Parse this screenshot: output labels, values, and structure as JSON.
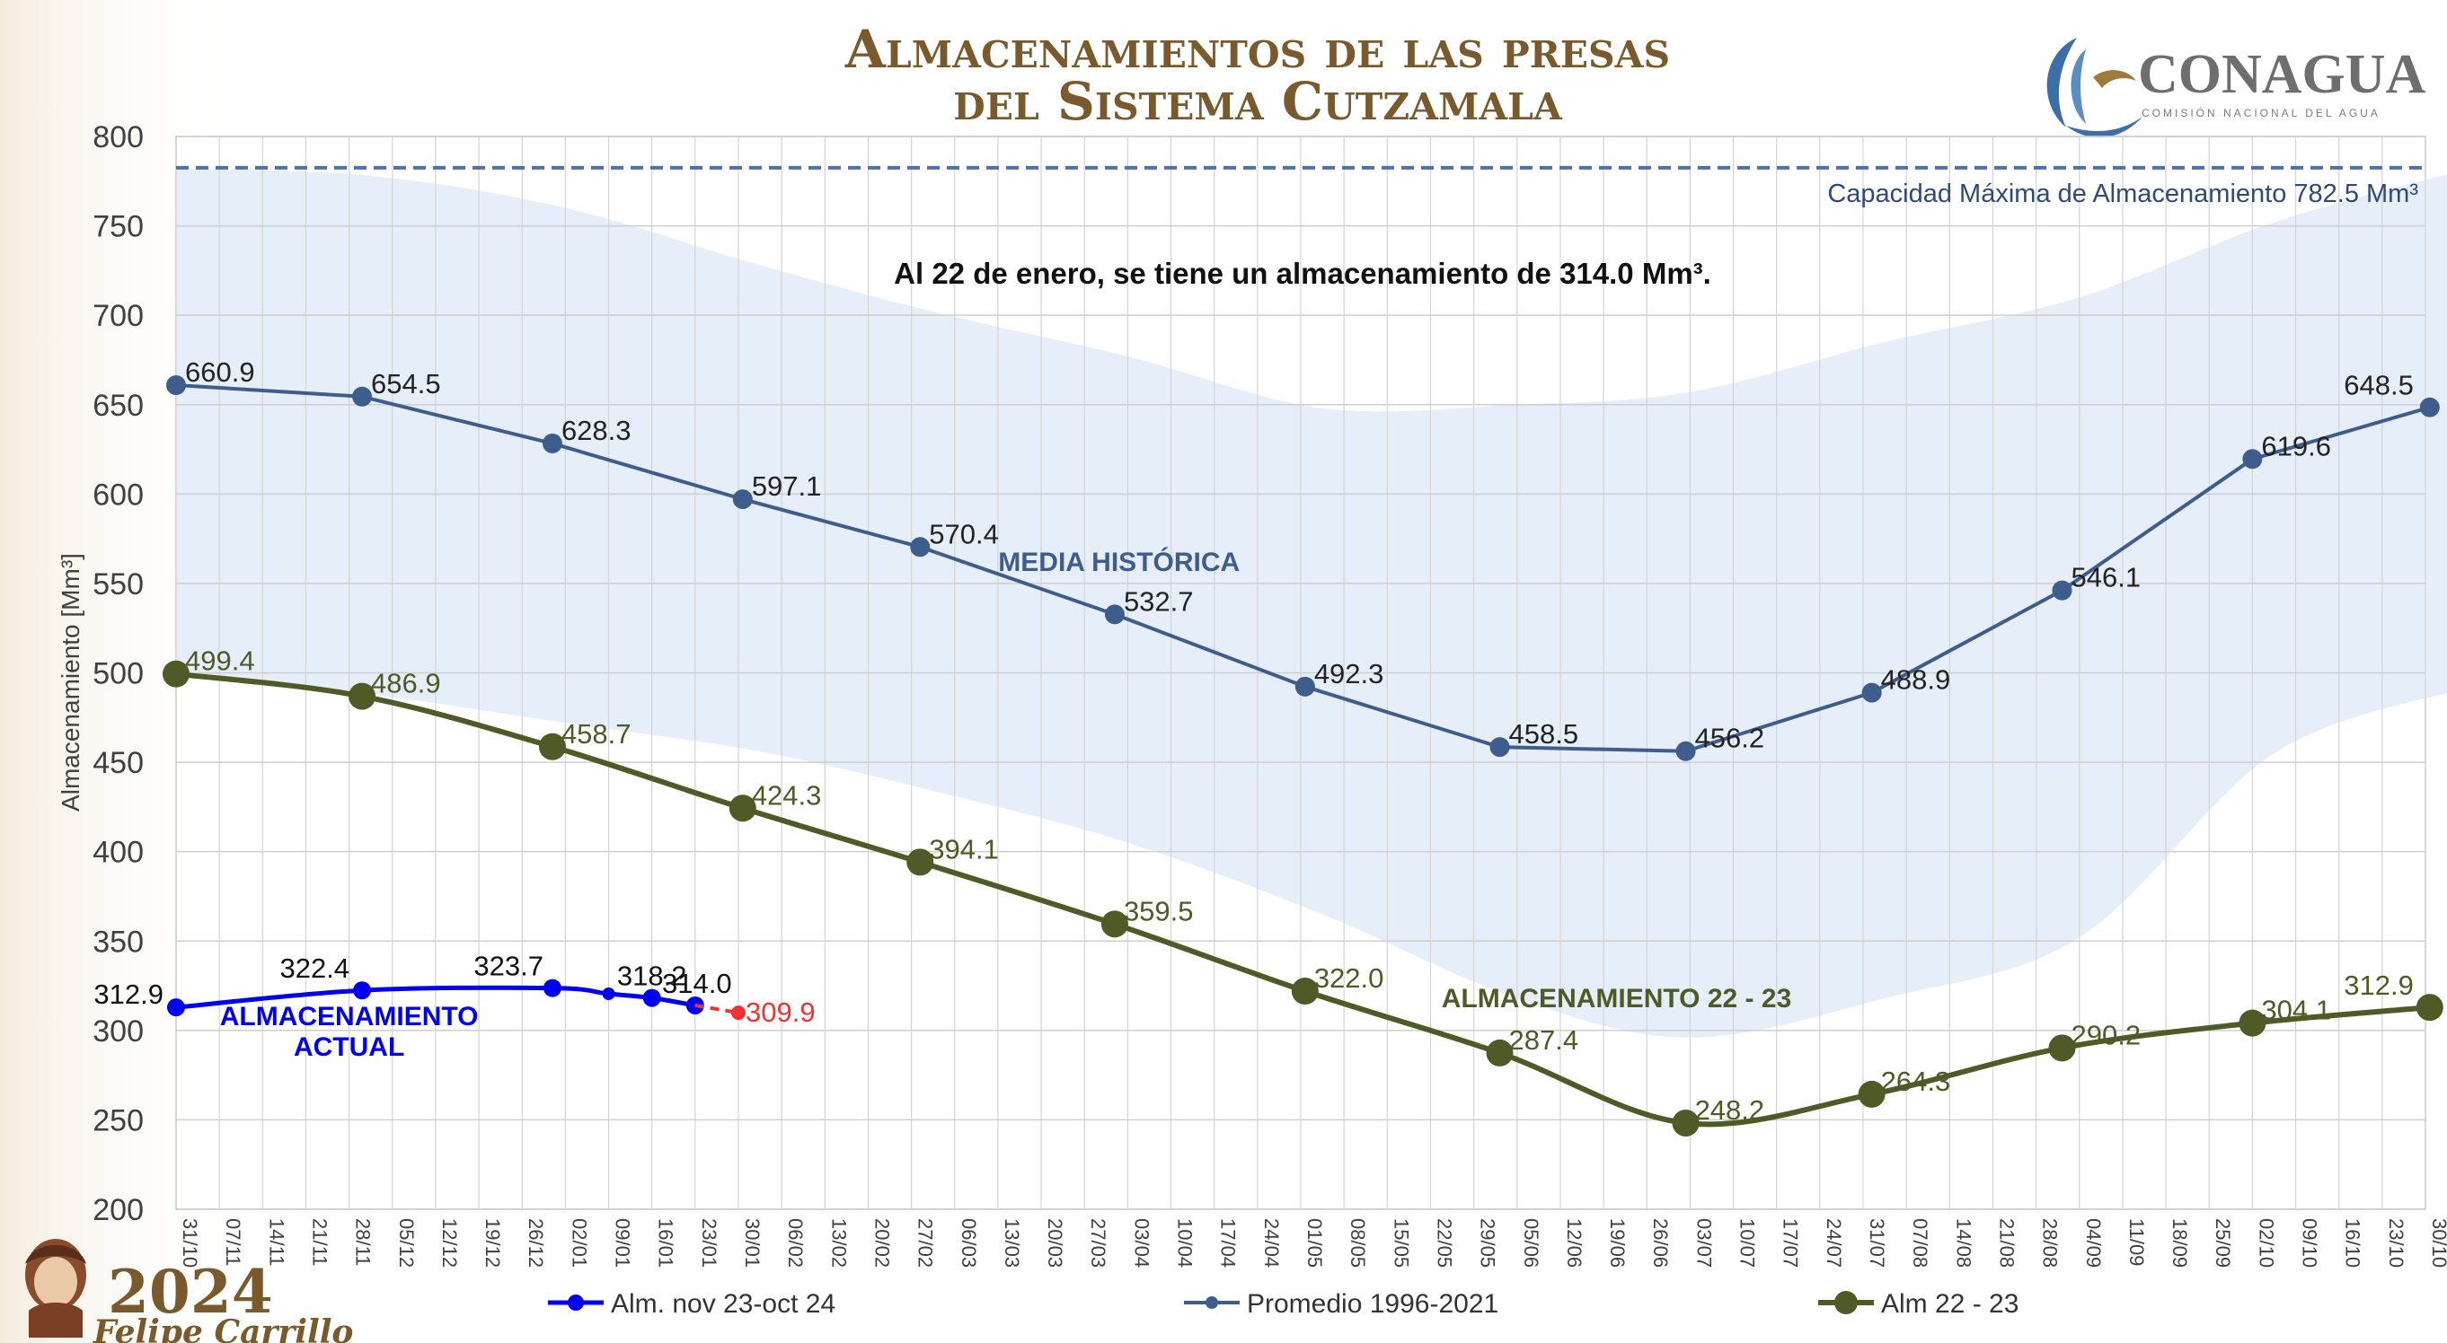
{
  "title": {
    "line1": "Almacenamientos de las presas",
    "line2": "del Sistema Cutzamala"
  },
  "logo": {
    "name": "CONAGUA",
    "subtitle": "COMISIÓN NACIONAL DEL AGUA",
    "icon": "conagua-bird-wave-icon"
  },
  "badge": {
    "year": "2024",
    "name": "Felipe Carrillo",
    "icon": "portrait-icon"
  },
  "colors": {
    "current": "#0000ee",
    "forecast": "#ee3333",
    "average": "#3f5d8c",
    "year2223": "#4e5b26",
    "band": "#e6eef9",
    "capacity": "#4a72b0"
  },
  "chart_data": {
    "type": "line",
    "ylabel": "Almacenamiento [Mm³]",
    "ylim": [
      200,
      800
    ],
    "yticks": [
      200,
      250,
      300,
      350,
      400,
      450,
      500,
      550,
      600,
      650,
      700,
      750,
      800
    ],
    "grid": true,
    "x_axis": {
      "start": "31/10",
      "step_days": 7,
      "tick_labels": [
        "31/10",
        "07/11",
        "14/11",
        "21/11",
        "28/11",
        "05/12",
        "12/12",
        "19/12",
        "26/12",
        "02/01",
        "09/01",
        "16/01",
        "23/01",
        "30/01",
        "06/02",
        "13/02",
        "20/02",
        "27/02",
        "06/03",
        "13/03",
        "20/03",
        "27/03",
        "03/04",
        "10/04",
        "17/04",
        "24/04",
        "01/05",
        "08/05",
        "15/05",
        "22/05",
        "29/05",
        "05/06",
        "12/06",
        "19/06",
        "26/06",
        "03/07",
        "10/07",
        "17/07",
        "24/07",
        "31/07",
        "07/08",
        "14/08",
        "21/08",
        "28/08",
        "04/09",
        "11/09",
        "18/09",
        "25/09",
        "02/10",
        "09/10",
        "16/10",
        "23/10",
        "30/10"
      ]
    },
    "capacity": {
      "value": 782.5,
      "label": "Capacidad Máxima de Almacenamiento 782.5 Mm³"
    },
    "annotation": "Al 22 de enero, se tiene un almacenamiento de 314.0 Mm³.",
    "historical_band": {
      "x_week": [
        0,
        4.5,
        9,
        13.5,
        17.5,
        22,
        26.5,
        31,
        35,
        39.5,
        44,
        48.5,
        53
      ],
      "upper": [
        782,
        778,
        760,
        728,
        702,
        677,
        648,
        650,
        657,
        685,
        710,
        752,
        782
      ],
      "lower": [
        500,
        488,
        472,
        456,
        434,
        405,
        365,
        318,
        296,
        318,
        352,
        455,
        492
      ]
    },
    "series": [
      {
        "name": "Alm. nov 23-oct 24",
        "style": "current",
        "points": [
          {
            "x": 0,
            "y": 312.9,
            "label": "312.9"
          },
          {
            "x": 4.3,
            "y": 322.4,
            "label": "322.4"
          },
          {
            "x": 8.7,
            "y": 323.7,
            "label": "323.7"
          },
          {
            "x": 10.0,
            "y": 320.5
          },
          {
            "x": 11.0,
            "y": 318.2,
            "label": "318.2"
          },
          {
            "x": 12.0,
            "y": 314.0,
            "label": "314.0"
          }
        ],
        "forecast": [
          {
            "x": 12.0,
            "y": 314.0
          },
          {
            "x": 13.0,
            "y": 309.9,
            "label": "309.9"
          }
        ],
        "series_label": [
          "ALMACENAMIENTO",
          "ACTUAL"
        ]
      },
      {
        "name": "Promedio 1996-2021",
        "style": "average",
        "points": [
          {
            "x": 0,
            "y": 660.9,
            "label": "660.9"
          },
          {
            "x": 4.3,
            "y": 654.5,
            "label": "654.5"
          },
          {
            "x": 8.7,
            "y": 628.3,
            "label": "628.3"
          },
          {
            "x": 13.1,
            "y": 597.1,
            "label": "597.1"
          },
          {
            "x": 17.2,
            "y": 570.4,
            "label": "570.4"
          },
          {
            "x": 21.7,
            "y": 532.7,
            "label": "532.7"
          },
          {
            "x": 26.1,
            "y": 492.3,
            "label": "492.3"
          },
          {
            "x": 30.6,
            "y": 458.5,
            "label": "458.5"
          },
          {
            "x": 34.9,
            "y": 456.2,
            "label": "456.2"
          },
          {
            "x": 39.2,
            "y": 488.9,
            "label": "488.9"
          },
          {
            "x": 43.6,
            "y": 546.1,
            "label": "546.1"
          },
          {
            "x": 48.0,
            "y": 619.6,
            "label": "619.6"
          },
          {
            "x": 52.1,
            "y": 648.5,
            "label": "648.5"
          }
        ],
        "series_label": [
          "MEDIA HISTÓRICA"
        ]
      },
      {
        "name": "Alm 22 - 23",
        "style": "year2223",
        "points": [
          {
            "x": 0,
            "y": 499.4,
            "label": "499.4"
          },
          {
            "x": 4.3,
            "y": 486.9,
            "label": "486.9"
          },
          {
            "x": 8.7,
            "y": 458.7,
            "label": "458.7"
          },
          {
            "x": 13.1,
            "y": 424.3,
            "label": "424.3"
          },
          {
            "x": 17.2,
            "y": 394.1,
            "label": "394.1"
          },
          {
            "x": 21.7,
            "y": 359.5,
            "label": "359.5"
          },
          {
            "x": 26.1,
            "y": 322.0,
            "label": "322.0"
          },
          {
            "x": 30.6,
            "y": 287.4,
            "label": "287.4"
          },
          {
            "x": 34.9,
            "y": 248.2,
            "label": "248.2"
          },
          {
            "x": 39.2,
            "y": 264.3,
            "label": "264.3"
          },
          {
            "x": 43.6,
            "y": 290.2,
            "label": "290.2"
          },
          {
            "x": 48.0,
            "y": 304.1,
            "label": "304.1"
          },
          {
            "x": 52.1,
            "y": 312.9,
            "label": "312.9"
          }
        ],
        "series_label": [
          "ALMACENAMIENTO 22 - 23"
        ]
      }
    ],
    "legend": {
      "position": "bottom",
      "entries": [
        "Alm. nov 23-oct 24",
        "Promedio 1996-2021",
        "Alm 22 - 23"
      ]
    }
  }
}
